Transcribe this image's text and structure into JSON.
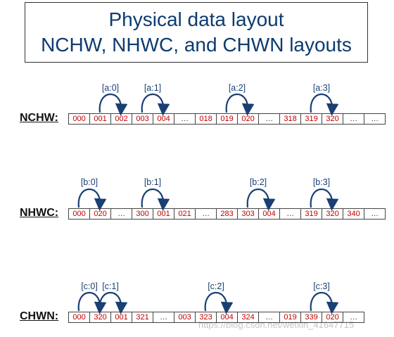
{
  "title": {
    "line1": "Physical data layout",
    "line2": "NCHW, NHWC, and CHWN layouts"
  },
  "rows": [
    {
      "label": "NCHW:",
      "cells": [
        "000",
        "001",
        "002",
        "003",
        "004",
        "...",
        "018",
        "019",
        "020",
        "...",
        "318",
        "319",
        "320",
        "...",
        "..."
      ],
      "arcs": [
        {
          "label": "[a:0]",
          "from": 1,
          "to": 2
        },
        {
          "label": "[a:1]",
          "from": 3,
          "to": 4
        },
        {
          "label": "[a:2]",
          "from": 7,
          "to": 8
        },
        {
          "label": "[a:3]",
          "from": 11,
          "to": 12
        }
      ]
    },
    {
      "label": "NHWC:",
      "cells": [
        "000",
        "020",
        "...",
        "300",
        "001",
        "021",
        "...",
        "283",
        "303",
        "004",
        "...",
        "319",
        "320",
        "340",
        "..."
      ],
      "arcs": [
        {
          "label": "[b:0]",
          "from": 0,
          "to": 1
        },
        {
          "label": "[b:1]",
          "from": 3,
          "to": 4
        },
        {
          "label": "[b:2]",
          "from": 8,
          "to": 9
        },
        {
          "label": "[b:3]",
          "from": 11,
          "to": 12
        }
      ]
    },
    {
      "label": "CHWN:",
      "cells": [
        "000",
        "320",
        "001",
        "321",
        "...",
        "003",
        "323",
        "004",
        "324",
        "...",
        "019",
        "339",
        "020",
        "..."
      ],
      "arcs": [
        {
          "label": "[c:0]",
          "from": 0,
          "to": 1
        },
        {
          "label": "[c:1]",
          "from": 1,
          "to": 2
        },
        {
          "label": "[c:2]",
          "from": 6,
          "to": 7
        },
        {
          "label": "[c:3]",
          "from": 11,
          "to": 12
        }
      ]
    }
  ],
  "watermark": "https://blog.csdn.net/weixin_41647715",
  "colors": {
    "title": "#0c3b70",
    "cell_text": "#c00000",
    "arc": "#1a3f73"
  }
}
